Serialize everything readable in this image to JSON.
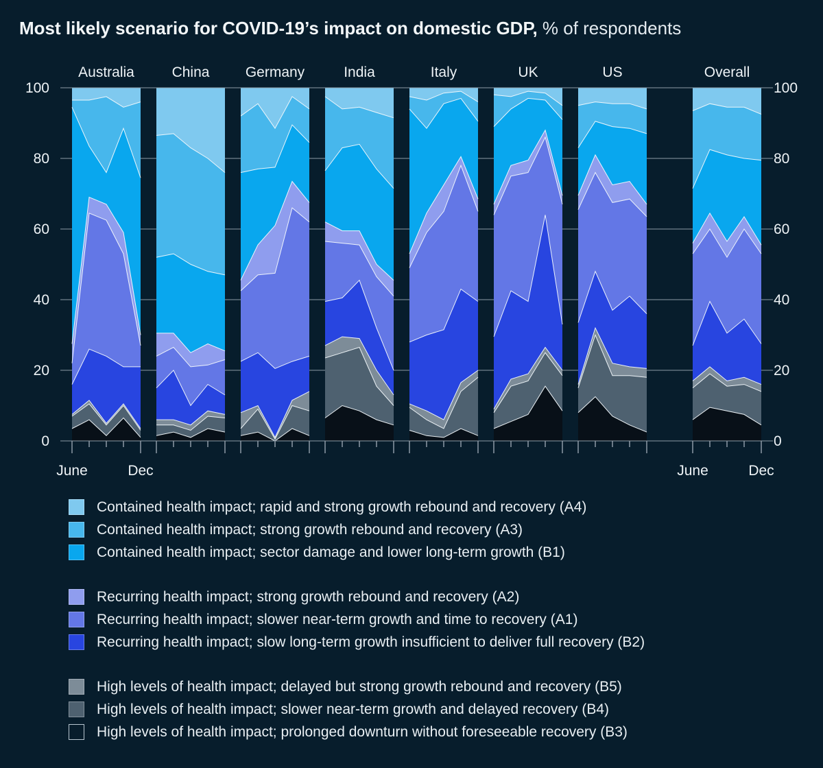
{
  "title": {
    "main": "Most likely scenario for COVID-19’s impact on domestic GDP,",
    "suffix": " % of respondents"
  },
  "axis": {
    "y_ticks": [
      100,
      80,
      60,
      40,
      20,
      0
    ],
    "x_start_label": "June",
    "x_end_label": "Dec"
  },
  "colors": {
    "background": "#071d2c",
    "axis": "#8e9ba6",
    "text": "#eef3f6",
    "boundary": "rgba(244,250,253,0.95)"
  },
  "series_order_bottom_to_top": [
    "B3",
    "B4",
    "B5",
    "B2",
    "A1",
    "A2",
    "B1",
    "A3",
    "A4"
  ],
  "series_colors": {
    "A4": "#7fc9ef",
    "A3": "#47b7ec",
    "B1": "#09a7ee",
    "A2": "#8f9dee",
    "A1": "#6377e6",
    "B2": "#2845e0",
    "B5": "#7d8c98",
    "B4": "#4e6170",
    "B3": "#081018"
  },
  "chart_data": {
    "type": "area",
    "stacked": true,
    "unit": "% of respondents",
    "ylim": [
      0,
      100
    ],
    "x_points": [
      "June",
      "",
      "",
      "",
      "Dec"
    ],
    "panels": [
      {
        "label": "Australia",
        "series": {
          "B3": [
            3.5,
            6,
            1.5,
            6.5,
            1
          ],
          "B4": [
            3.5,
            4.5,
            3,
            3.5,
            2
          ],
          "B5": [
            0.5,
            1,
            0.5,
            0.5,
            0.5
          ],
          "B2": [
            8.5,
            14.5,
            19,
            10.5,
            17.5
          ],
          "A1": [
            6,
            38.5,
            38.5,
            32,
            6
          ],
          "A2": [
            5.5,
            4.5,
            4.5,
            6,
            3
          ],
          "B1": [
            67,
            14.5,
            9,
            29.5,
            44.5
          ],
          "A3": [
            2,
            13,
            21.5,
            6,
            21.5
          ],
          "A4": [
            3.5,
            3.5,
            2.5,
            5.5,
            4
          ]
        }
      },
      {
        "label": "China",
        "series": {
          "B3": [
            1.5,
            2.5,
            1,
            3.5,
            2.5
          ],
          "B4": [
            3,
            2,
            2,
            3.5,
            4
          ],
          "B5": [
            1.5,
            1.5,
            1.5,
            1.5,
            1
          ],
          "B2": [
            9,
            14,
            5.5,
            7.5,
            5.5
          ],
          "A1": [
            9,
            6.5,
            11,
            5.5,
            10
          ],
          "A2": [
            6.5,
            4,
            4,
            6,
            2.5
          ],
          "B1": [
            21.5,
            22.5,
            25,
            20.5,
            21.5
          ],
          "A3": [
            34.5,
            34,
            33,
            32,
            29
          ],
          "A4": [
            13.5,
            13,
            17,
            20,
            24
          ]
        }
      },
      {
        "label": "Germany",
        "series": {
          "B3": [
            1.5,
            2.5,
            0,
            3.5,
            1.5
          ],
          "B4": [
            2,
            6.5,
            0.5,
            6.5,
            7
          ],
          "B5": [
            4.5,
            1,
            0.5,
            1.5,
            5.5
          ],
          "B2": [
            14.5,
            15,
            19.5,
            11,
            10
          ],
          "A1": [
            20,
            22,
            27,
            43.5,
            38
          ],
          "A2": [
            3,
            8.5,
            13.5,
            7.5,
            5.5
          ],
          "B1": [
            30.5,
            21.5,
            16.5,
            16,
            17
          ],
          "A3": [
            16,
            18.5,
            11,
            8,
            9.5
          ],
          "A4": [
            8,
            4.5,
            11.5,
            2.5,
            6
          ]
        }
      },
      {
        "label": "India",
        "series": {
          "B3": [
            6.5,
            10,
            8.5,
            6,
            4.5
          ],
          "B4": [
            17,
            15,
            18,
            9.5,
            5.5
          ],
          "B5": [
            3.5,
            4.5,
            2.5,
            4.5,
            3
          ],
          "B2": [
            12.5,
            11,
            16.5,
            12,
            7
          ],
          "A1": [
            17,
            15.5,
            10,
            14.5,
            21
          ],
          "A2": [
            5.5,
            3.5,
            4,
            3.5,
            4.5
          ],
          "B1": [
            14.5,
            23.5,
            24.5,
            27,
            26
          ],
          "A3": [
            21,
            11,
            10.5,
            16,
            20
          ],
          "A4": [
            2.5,
            6,
            5.5,
            7,
            8.5
          ]
        }
      },
      {
        "label": "Italy",
        "series": {
          "B3": [
            3,
            1.5,
            1,
            3.5,
            1.5
          ],
          "B4": [
            6.5,
            4.5,
            2.5,
            10.5,
            16.5
          ],
          "B5": [
            1,
            2.5,
            2.5,
            2.5,
            2
          ],
          "B2": [
            17.5,
            21.5,
            25.5,
            26.5,
            19.5
          ],
          "A1": [
            21,
            29,
            33.5,
            35,
            25.5
          ],
          "A2": [
            4,
            5.5,
            7.5,
            2.5,
            3.5
          ],
          "B1": [
            41,
            24,
            23,
            16.5,
            22
          ],
          "A3": [
            3.5,
            8,
            3,
            2,
            5.5
          ],
          "A4": [
            2.5,
            3.5,
            1.5,
            1,
            4
          ]
        }
      },
      {
        "label": "UK",
        "series": {
          "B3": [
            3.5,
            5.5,
            7.5,
            15.5,
            8.5
          ],
          "B4": [
            4.5,
            10,
            9.5,
            9.5,
            10
          ],
          "B5": [
            1,
            2,
            2,
            1.5,
            1.5
          ],
          "B2": [
            20.5,
            25,
            20.5,
            37.5,
            13
          ],
          "A1": [
            34.5,
            32.5,
            36.5,
            22,
            34
          ],
          "A2": [
            3,
            3,
            3.5,
            2,
            2.5
          ],
          "B1": [
            22,
            16,
            17.5,
            8.5,
            21.5
          ],
          "A3": [
            9,
            3.5,
            2,
            2,
            4
          ],
          "A4": [
            2,
            2.5,
            1,
            1.5,
            5
          ]
        }
      },
      {
        "label": "US",
        "series": {
          "B3": [
            8,
            12.5,
            7,
            4.5,
            2.5
          ],
          "B4": [
            7,
            17.5,
            11.5,
            14,
            15.5
          ],
          "B5": [
            1,
            2,
            3.5,
            2.5,
            2.5
          ],
          "B2": [
            17.5,
            16,
            15,
            20,
            15.5
          ],
          "A1": [
            32,
            28,
            30.5,
            27.5,
            27.5
          ],
          "A2": [
            4,
            5,
            5,
            5,
            3.5
          ],
          "B1": [
            13.5,
            9.5,
            16.5,
            15,
            20
          ],
          "A3": [
            12,
            5.5,
            6.5,
            7,
            7
          ],
          "A4": [
            5,
            4,
            4.5,
            4.5,
            6
          ]
        }
      },
      {
        "label": "Overall",
        "series": {
          "B3": [
            6,
            9.5,
            8.5,
            7.5,
            4.5
          ],
          "B4": [
            9,
            9.5,
            7,
            8.5,
            9.5
          ],
          "B5": [
            2,
            2,
            1.5,
            2,
            2
          ],
          "B2": [
            10,
            18.5,
            13.5,
            16.5,
            11.5
          ],
          "A1": [
            26,
            20.5,
            21.5,
            25.5,
            25.5
          ],
          "A2": [
            3,
            4.5,
            4.5,
            3.5,
            2.5
          ],
          "B1": [
            15.5,
            18,
            24.5,
            16.5,
            24
          ],
          "A3": [
            22,
            13,
            13.5,
            14.5,
            13
          ],
          "A4": [
            6.5,
            4.5,
            5.5,
            5.5,
            7.5
          ]
        }
      }
    ]
  },
  "legend": {
    "groups": [
      [
        {
          "id": "A4",
          "label": "Contained health impact; rapid and strong growth rebound and recovery (A4)"
        },
        {
          "id": "A3",
          "label": "Contained health impact; strong growth rebound and recovery (A3)"
        },
        {
          "id": "B1",
          "label": "Contained health impact; sector damage and lower long-term growth (B1)"
        }
      ],
      [
        {
          "id": "A2",
          "label": "Recurring health impact; strong growth rebound and recovery (A2)"
        },
        {
          "id": "A1",
          "label": "Recurring health impact; slower near-term growth and time to recovery (A1)"
        },
        {
          "id": "B2",
          "label": "Recurring health impact; slow long-term growth insufficient to deliver full recovery (B2)"
        }
      ],
      [
        {
          "id": "B5",
          "label": "High levels of health impact; delayed but strong growth rebound and recovery (B5)"
        },
        {
          "id": "B4",
          "label": "High levels of health impact; slower near-term growth and delayed recovery (B4)"
        },
        {
          "id": "B3",
          "label": "High levels of health impact; prolonged downturn without foreseeable recovery (B3)"
        }
      ]
    ]
  }
}
